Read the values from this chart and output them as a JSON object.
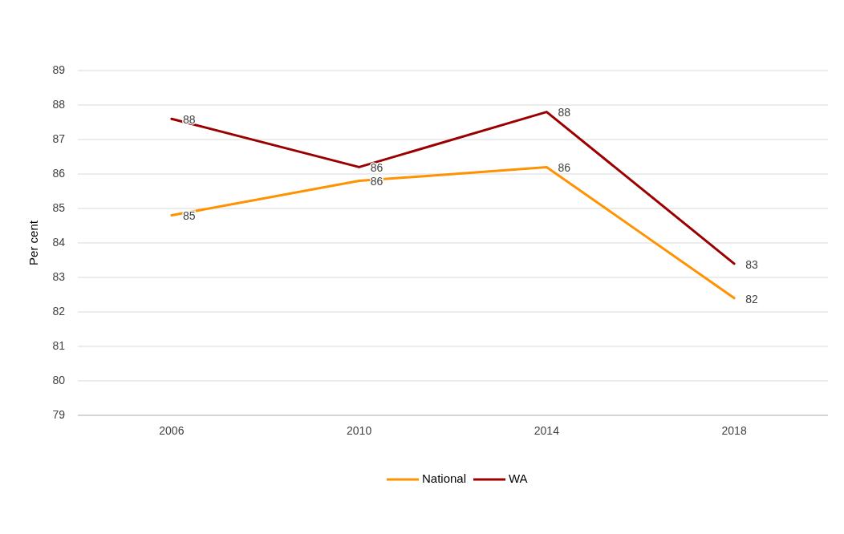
{
  "chart_data": {
    "type": "line",
    "ylabel": "Per cent",
    "categories": [
      "2006",
      "2010",
      "2014",
      "2018"
    ],
    "series": [
      {
        "name": "National",
        "color": "#ff9200",
        "values": [
          84.8,
          85.8,
          86.2,
          82.4
        ],
        "value_labels": [
          "85",
          "86",
          "86",
          "82"
        ]
      },
      {
        "name": "WA",
        "color": "#9b0000",
        "values": [
          87.6,
          86.2,
          87.8,
          83.4
        ],
        "value_labels": [
          "88",
          "86",
          "88",
          "83"
        ]
      }
    ],
    "ylim": [
      79,
      89
    ],
    "yticks": [
      79,
      80,
      81,
      82,
      83,
      84,
      85,
      86,
      87,
      88,
      89
    ],
    "grid": "y",
    "legend": "bottom",
    "marker": "none",
    "line_style": "solid"
  }
}
